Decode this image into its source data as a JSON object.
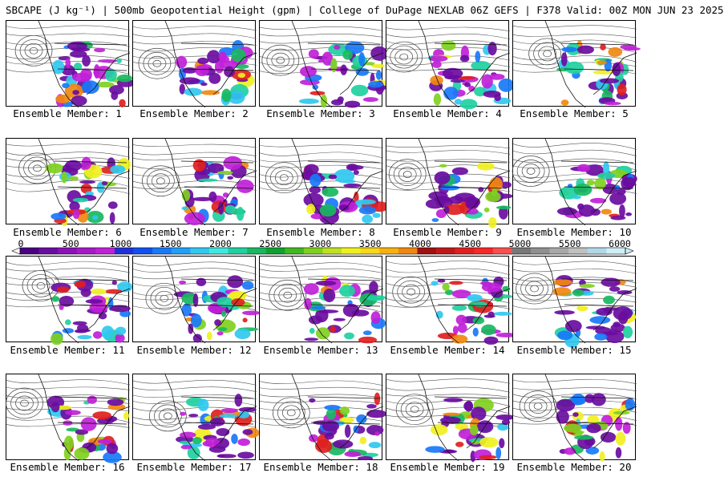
{
  "header": {
    "title": "SBCAPE (J kg⁻¹) | 500mb Geopotential Height (gpm) | College of DuPage NEXLAB 06Z GEFS | F378 Valid: 00Z MON JUN 23 2025"
  },
  "members": [
    {
      "label": "Ensemble Member: 1"
    },
    {
      "label": "Ensemble Member: 2"
    },
    {
      "label": "Ensemble Member: 3"
    },
    {
      "label": "Ensemble Member: 4"
    },
    {
      "label": "Ensemble Member: 5"
    },
    {
      "label": "Ensemble Member: 6"
    },
    {
      "label": "Ensemble Member: 7"
    },
    {
      "label": "Ensemble Member: 8"
    },
    {
      "label": "Ensemble Member: 9"
    },
    {
      "label": "Ensemble Member: 10"
    },
    {
      "label": "Ensemble Member: 11"
    },
    {
      "label": "Ensemble Member: 12"
    },
    {
      "label": "Ensemble Member: 13"
    },
    {
      "label": "Ensemble Member: 14"
    },
    {
      "label": "Ensemble Member: 15"
    },
    {
      "label": "Ensemble Member: 16"
    },
    {
      "label": "Ensemble Member: 17"
    },
    {
      "label": "Ensemble Member: 18"
    },
    {
      "label": "Ensemble Member: 19"
    },
    {
      "label": "Ensemble Member: 20"
    }
  ],
  "colorbar": {
    "ticks": [
      "0",
      "500",
      "1000",
      "1500",
      "2000",
      "2500",
      "3000",
      "3500",
      "4000",
      "4500",
      "5000",
      "5500",
      "6000"
    ],
    "min": 0,
    "max": 6000,
    "colors": [
      "#4a0080",
      "#6a0ca0",
      "#8a10b8",
      "#a818c8",
      "#c020d8",
      "#2030d8",
      "#1050f0",
      "#1878f8",
      "#20a0f8",
      "#30c8f0",
      "#40e8e0",
      "#20d0a0",
      "#18b860",
      "#10a030",
      "#40b820",
      "#80d020",
      "#c0e020",
      "#f0f020",
      "#f8d818",
      "#f8b010",
      "#f08810",
      "#a01010",
      "#c01818",
      "#e02020",
      "#f82828",
      "#f85050",
      "#787878",
      "#909090",
      "#a8a8a8",
      "#c0c0c0",
      "#b0d8e8",
      "#d0eef8"
    ],
    "cape_colors": [
      "#6a0ca0",
      "#c020d8",
      "#1878f8",
      "#30c8f0",
      "#20d0a0",
      "#18b860",
      "#80d020",
      "#f0f020",
      "#f08810",
      "#e02020"
    ]
  }
}
